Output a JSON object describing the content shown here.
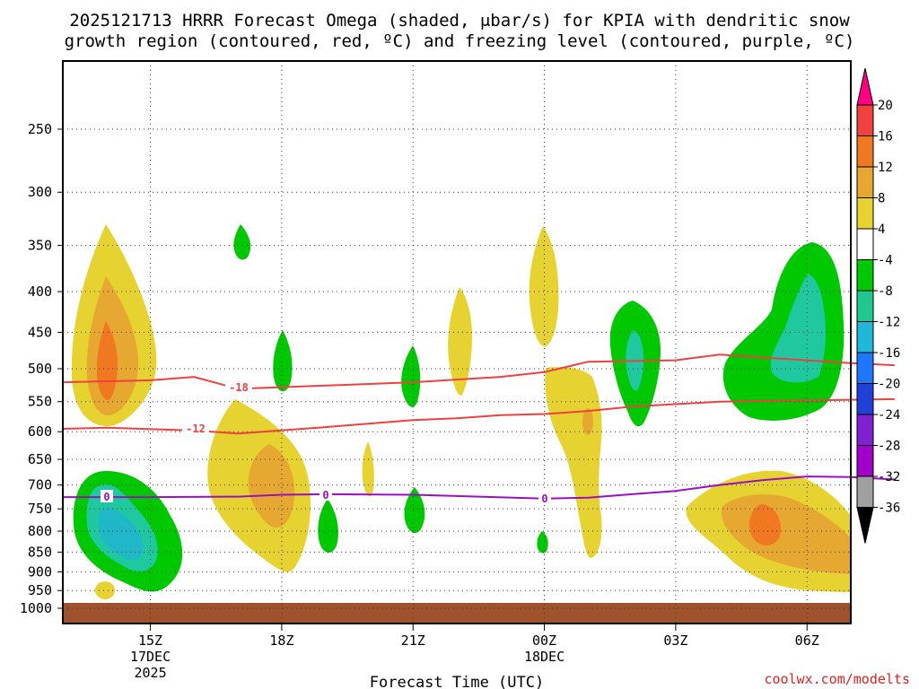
{
  "chart_data": {
    "type": "contour",
    "title_line1": "2025121713 HRRR Forecast Omega (shaded, μbar/s) for KPIA with dendritic snow",
    "title_line2": "growth region (contoured, red, ºC) and freezing level (contoured, purple, ºC)",
    "xlabel": "Forecast Time (UTC)",
    "credit": "coolwx.com/modelts",
    "x_range_hours": [
      13,
      7.0
    ],
    "x_ticks": [
      {
        "hour": 15,
        "label": "15Z",
        "sub1": "17DEC",
        "sub2": "2025"
      },
      {
        "hour": 18,
        "label": "18Z",
        "sub1": "",
        "sub2": ""
      },
      {
        "hour": 21,
        "label": "21Z",
        "sub1": "",
        "sub2": ""
      },
      {
        "hour": 24,
        "label": "00Z",
        "sub1": "18DEC",
        "sub2": ""
      },
      {
        "hour": 27,
        "label": "03Z",
        "sub1": "",
        "sub2": ""
      },
      {
        "hour": 30,
        "label": "06Z",
        "sub1": "",
        "sub2": ""
      }
    ],
    "y_ticks_mb": [
      "250",
      "300",
      "350",
      "400",
      "450",
      "500",
      "550",
      "600",
      "650",
      "700",
      "750",
      "800",
      "850",
      "900",
      "950",
      "1000"
    ],
    "colorbar": {
      "labels": [
        "20",
        "16",
        "12",
        "8",
        "4",
        "-4",
        "-8",
        "-12",
        "-16",
        "-20",
        "-24",
        "-28",
        "-32",
        "-36"
      ],
      "colors": [
        "#ff0080",
        "#f04040",
        "#f07820",
        "#e6a830",
        "#e6d230",
        "#ffffff",
        "#00c800",
        "#20c890",
        "#20b8d8",
        "#1e78ff",
        "#2040d8",
        "#8020d0",
        "#a000c8",
        "#a0a0a0",
        "#000000"
      ]
    },
    "fill_colors": {
      "yellow": "#e6d230",
      "gold": "#e6a830",
      "orange": "#f07820",
      "green": "#00c800",
      "teal": "#20c8a0",
      "cyan": "#20b8c8",
      "ground": "#a0522d"
    },
    "line_colors": {
      "dendritic": "#ee4040",
      "freezing": "#9a10c0"
    },
    "contour_labels": {
      "minus18": "-18",
      "minus12": "-12",
      "zero_a": "0",
      "zero_b": "0",
      "zero_c": "0"
    },
    "contours": {
      "dendritic_upper_minus18": [
        [
          13,
          520
        ],
        [
          15,
          517
        ],
        [
          16,
          512
        ],
        [
          17,
          530
        ],
        [
          19,
          525
        ],
        [
          21,
          520
        ],
        [
          23,
          512
        ],
        [
          24,
          505
        ],
        [
          25,
          490
        ],
        [
          27,
          488
        ],
        [
          28,
          480
        ],
        [
          29,
          484
        ],
        [
          31,
          492
        ],
        [
          32,
          495
        ]
      ],
      "dendritic_lower_minus12": [
        [
          13,
          595
        ],
        [
          14,
          593
        ],
        [
          16,
          598
        ],
        [
          17,
          603
        ],
        [
          19,
          592
        ],
        [
          21,
          580
        ],
        [
          22,
          577
        ],
        [
          23,
          572
        ],
        [
          24,
          570
        ],
        [
          25,
          565
        ],
        [
          26,
          558
        ],
        [
          28,
          550
        ],
        [
          29,
          549
        ],
        [
          31,
          547
        ],
        [
          32,
          546
        ]
      ],
      "freezing_zero": [
        [
          13,
          725
        ],
        [
          15,
          725
        ],
        [
          17,
          724
        ],
        [
          18,
          720
        ],
        [
          19,
          719
        ],
        [
          21,
          720
        ],
        [
          24,
          728
        ],
        [
          25,
          726
        ],
        [
          26,
          719
        ],
        [
          27,
          712
        ],
        [
          28,
          700
        ],
        [
          29,
          690
        ],
        [
          30,
          683
        ],
        [
          31,
          684
        ],
        [
          32,
          689
        ]
      ]
    }
  }
}
